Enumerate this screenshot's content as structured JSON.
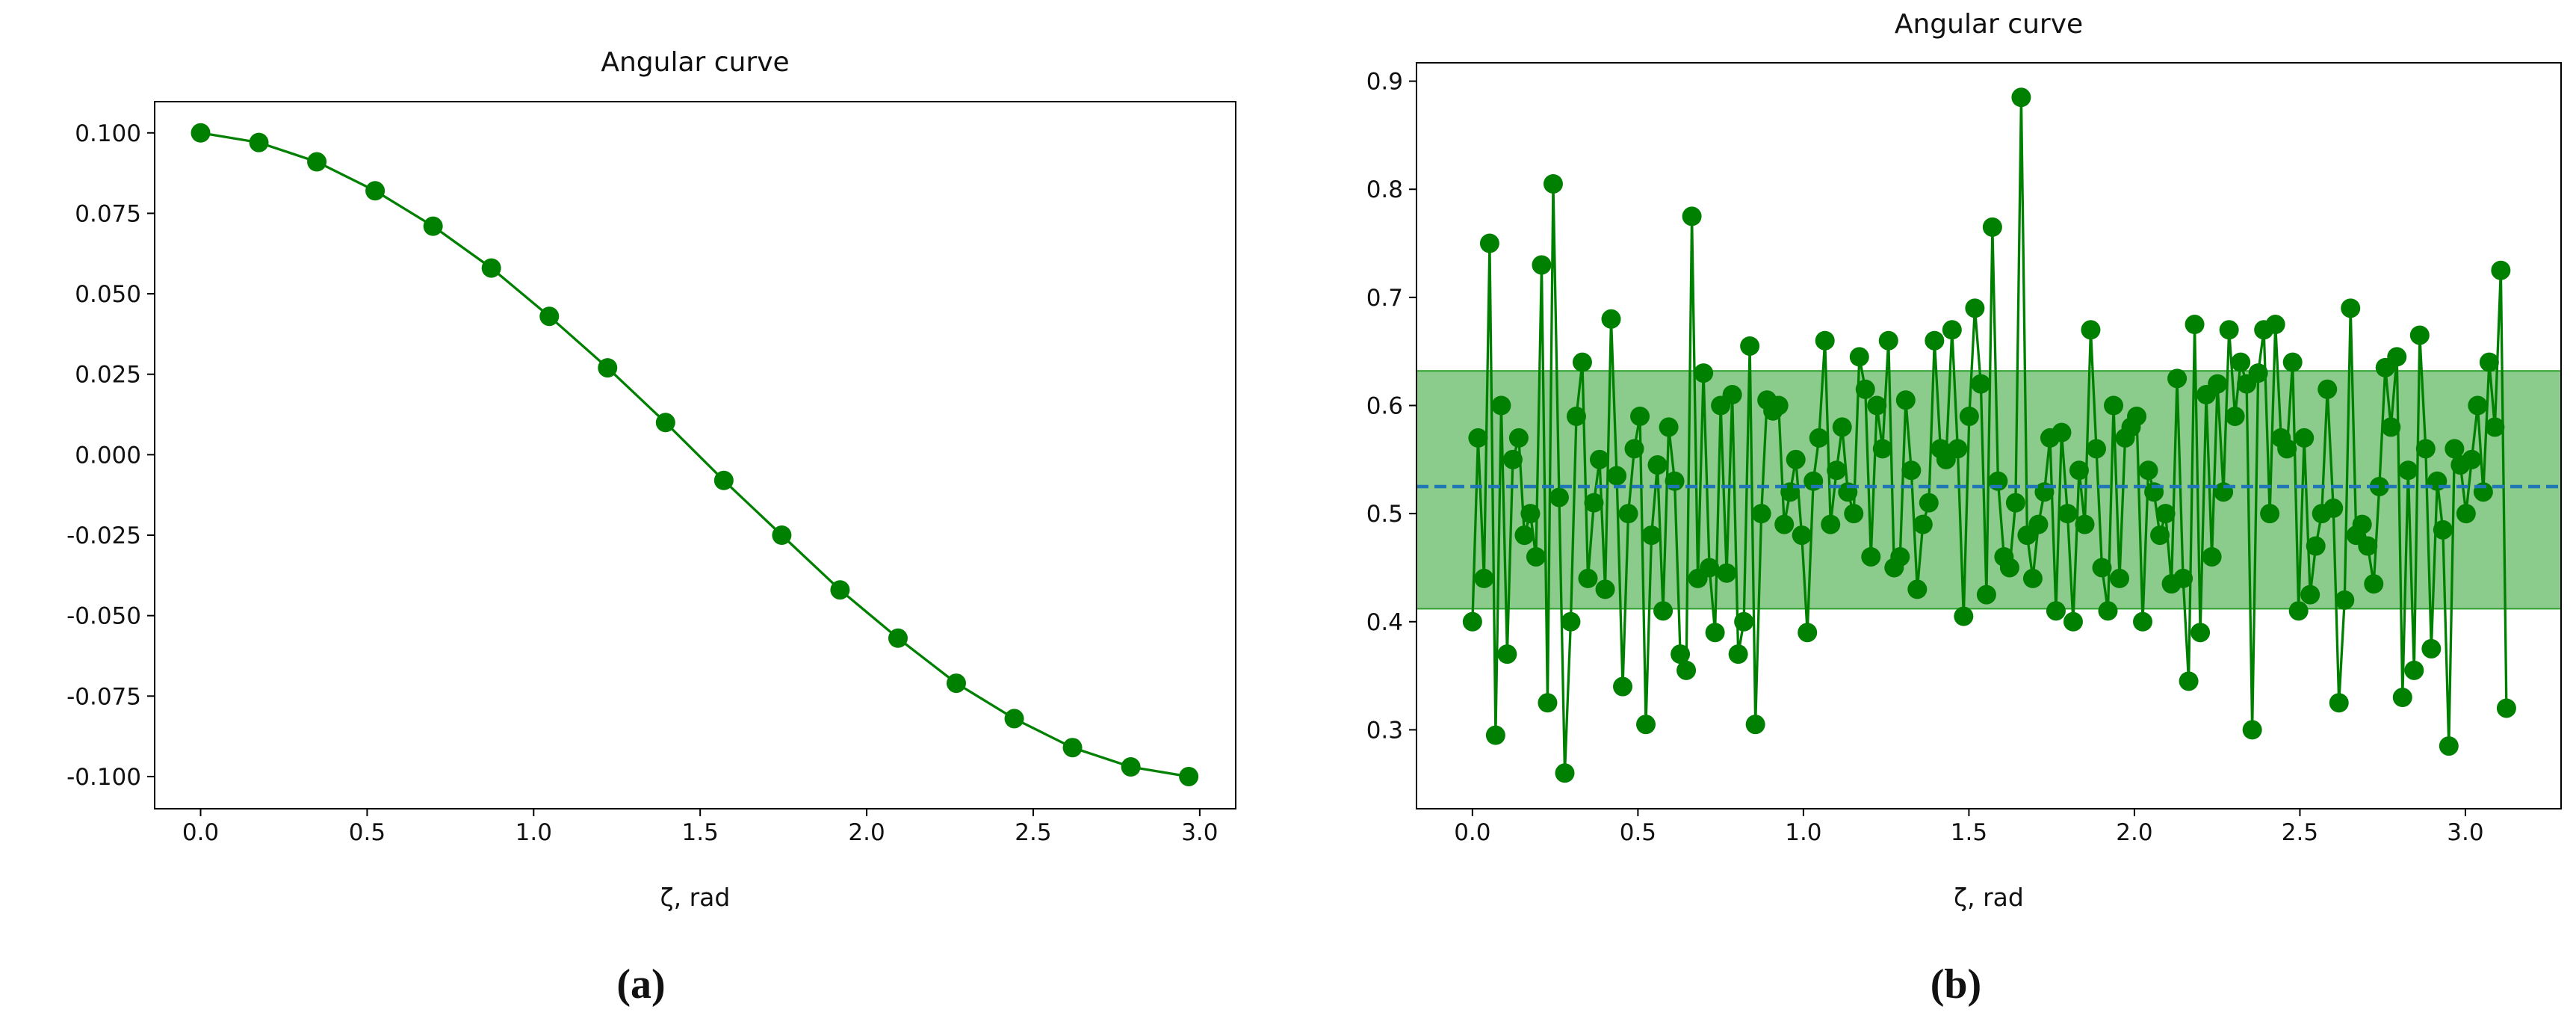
{
  "chart_data": [
    {
      "type": "line",
      "title": "Angular curve",
      "xlabel": "ζ, rad",
      "caption": "(a)",
      "color": "#008000",
      "x": [
        0,
        0.175,
        0.349,
        0.524,
        0.698,
        0.873,
        1.047,
        1.222,
        1.396,
        1.571,
        1.745,
        1.92,
        2.094,
        2.269,
        2.443,
        2.618,
        2.793,
        2.967
      ],
      "values": [
        0.1,
        0.097,
        0.091,
        0.082,
        0.071,
        0.058,
        0.043,
        0.027,
        0.01,
        -0.008,
        -0.025,
        -0.042,
        -0.057,
        -0.071,
        -0.082,
        -0.091,
        -0.097,
        -0.1
      ],
      "xlim": [
        -0.138,
        3.108
      ],
      "ylim": [
        -0.11,
        0.1097
      ],
      "xticks": [
        {
          "value": 0,
          "label": "0.0"
        },
        0.5,
        {
          "value": 1,
          "label": "1.0"
        },
        1.5,
        {
          "value": 2,
          "label": "2.0"
        },
        2.5,
        {
          "value": 3,
          "label": "3.0"
        }
      ],
      "yticks": [
        {
          "value": 0.1,
          "label": "0.100"
        },
        {
          "value": 0.075,
          "label": "0.075"
        },
        {
          "value": 0.05,
          "label": "0.050"
        },
        {
          "value": 0.025,
          "label": "0.025"
        },
        {
          "value": 0,
          "label": "0.000"
        },
        {
          "value": -0.025,
          "label": "-0.025"
        },
        {
          "value": -0.05,
          "label": "-0.050"
        },
        {
          "value": -0.075,
          "label": "-0.075"
        },
        {
          "value": -0.1,
          "label": "-0.100"
        }
      ]
    },
    {
      "type": "line",
      "title": "Angular curve",
      "xlabel": "ζ, rad",
      "caption": "(b)",
      "color": "#008000",
      "band": [
        0.412,
        0.632
      ],
      "band_color": "#2ca02c",
      "mean": 0.525,
      "mean_color": "#1f77b4",
      "x": [
        0,
        0.017,
        0.035,
        0.052,
        0.07,
        0.087,
        0.105,
        0.122,
        0.14,
        0.157,
        0.175,
        0.192,
        0.209,
        0.227,
        0.244,
        0.262,
        0.279,
        0.297,
        0.314,
        0.332,
        0.349,
        0.367,
        0.384,
        0.401,
        0.419,
        0.436,
        0.454,
        0.471,
        0.489,
        0.506,
        0.524,
        0.541,
        0.559,
        0.576,
        0.593,
        0.611,
        0.628,
        0.646,
        0.663,
        0.681,
        0.698,
        0.716,
        0.733,
        0.75,
        0.768,
        0.785,
        0.803,
        0.82,
        0.838,
        0.855,
        0.873,
        0.89,
        0.908,
        0.925,
        0.942,
        0.96,
        0.977,
        0.995,
        1.012,
        1.03,
        1.047,
        1.065,
        1.082,
        1.1,
        1.117,
        1.134,
        1.152,
        1.169,
        1.187,
        1.204,
        1.222,
        1.239,
        1.257,
        1.274,
        1.292,
        1.309,
        1.326,
        1.344,
        1.361,
        1.379,
        1.396,
        1.414,
        1.431,
        1.449,
        1.466,
        1.484,
        1.501,
        1.518,
        1.536,
        1.553,
        1.571,
        1.588,
        1.606,
        1.623,
        1.641,
        1.658,
        1.676,
        1.693,
        1.71,
        1.728,
        1.745,
        1.763,
        1.78,
        1.798,
        1.815,
        1.833,
        1.85,
        1.868,
        1.885,
        1.902,
        1.92,
        1.937,
        1.955,
        1.972,
        1.99,
        2.007,
        2.025,
        2.042,
        2.059,
        2.077,
        2.094,
        2.112,
        2.129,
        2.147,
        2.164,
        2.182,
        2.199,
        2.217,
        2.234,
        2.251,
        2.269,
        2.286,
        2.304,
        2.321,
        2.339,
        2.356,
        2.374,
        2.391,
        2.409,
        2.426,
        2.443,
        2.461,
        2.478,
        2.496,
        2.513,
        2.531,
        2.548,
        2.566,
        2.583,
        2.601,
        2.618,
        2.635,
        2.653,
        2.67,
        2.688,
        2.705,
        2.723,
        2.74,
        2.758,
        2.775,
        2.793,
        2.81,
        2.827,
        2.845,
        2.862,
        2.88,
        2.897,
        2.915,
        2.932,
        2.95,
        2.967,
        2.985,
        3.002,
        3.019,
        3.037,
        3.054,
        3.072,
        3.089,
        3.107,
        3.124
      ],
      "values": [
        0.4,
        0.57,
        0.44,
        0.75,
        0.295,
        0.6,
        0.37,
        0.55,
        0.57,
        0.48,
        0.5,
        0.46,
        0.73,
        0.325,
        0.805,
        0.515,
        0.26,
        0.4,
        0.59,
        0.64,
        0.44,
        0.51,
        0.55,
        0.43,
        0.68,
        0.535,
        0.34,
        0.5,
        0.56,
        0.59,
        0.305,
        0.48,
        0.545,
        0.41,
        0.58,
        0.53,
        0.37,
        0.355,
        0.775,
        0.44,
        0.63,
        0.45,
        0.39,
        0.6,
        0.445,
        0.61,
        0.37,
        0.4,
        0.655,
        0.305,
        0.5,
        0.605,
        0.595,
        0.6,
        0.49,
        0.52,
        0.55,
        0.48,
        0.39,
        0.53,
        0.57,
        0.66,
        0.49,
        0.54,
        0.58,
        0.52,
        0.5,
        0.645,
        0.615,
        0.46,
        0.6,
        0.56,
        0.66,
        0.45,
        0.46,
        0.605,
        0.54,
        0.43,
        0.49,
        0.51,
        0.66,
        0.56,
        0.55,
        0.67,
        0.56,
        0.405,
        0.59,
        0.69,
        0.62,
        0.425,
        0.765,
        0.53,
        0.46,
        0.45,
        0.51,
        0.885,
        0.48,
        0.44,
        0.49,
        0.52,
        0.57,
        0.41,
        0.575,
        0.5,
        0.4,
        0.54,
        0.49,
        0.67,
        0.56,
        0.45,
        0.41,
        0.6,
        0.44,
        0.57,
        0.58,
        0.59,
        0.4,
        0.54,
        0.52,
        0.48,
        0.5,
        0.435,
        0.625,
        0.44,
        0.345,
        0.675,
        0.39,
        0.61,
        0.46,
        0.62,
        0.52,
        0.67,
        0.59,
        0.64,
        0.62,
        0.3,
        0.63,
        0.67,
        0.5,
        0.675,
        0.57,
        0.56,
        0.64,
        0.41,
        0.57,
        0.425,
        0.47,
        0.5,
        0.615,
        0.505,
        0.325,
        0.42,
        0.69,
        0.48,
        0.49,
        0.47,
        0.435,
        0.525,
        0.635,
        0.58,
        0.645,
        0.33,
        0.54,
        0.355,
        0.665,
        0.56,
        0.375,
        0.53,
        0.485,
        0.285,
        0.56,
        0.545,
        0.5,
        0.55,
        0.6,
        0.52,
        0.64,
        0.58,
        0.725,
        0.32
      ],
      "xlim": [
        -0.169,
        3.289
      ],
      "ylim": [
        0.227,
        0.917
      ],
      "xticks": [
        {
          "value": 0,
          "label": "0.0"
        },
        0.5,
        {
          "value": 1,
          "label": "1.0"
        },
        1.5,
        {
          "value": 2,
          "label": "2.0"
        },
        2.5,
        {
          "value": 3,
          "label": "3.0"
        }
      ],
      "yticks": [
        0.3,
        0.4,
        0.5,
        0.6,
        0.7,
        0.8,
        0.9
      ]
    }
  ]
}
